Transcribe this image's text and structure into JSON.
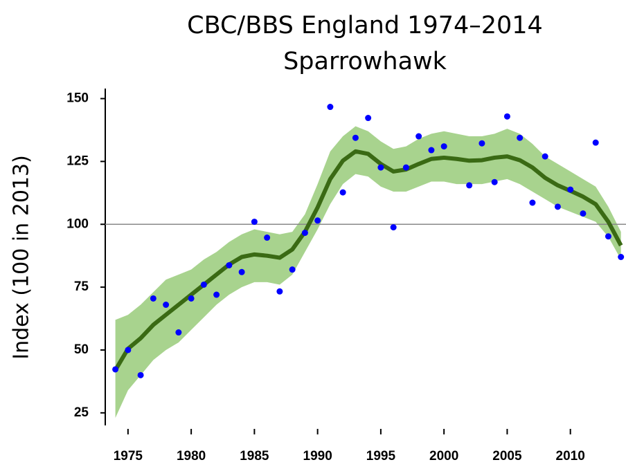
{
  "chart_data": {
    "type": "line",
    "title": "CBC/BBS England 1974–2014",
    "subtitle": "Sparrowhawk",
    "ylabel": "Index (100 in 2013)",
    "x": [
      1974,
      1975,
      1976,
      1977,
      1978,
      1979,
      1980,
      1981,
      1982,
      1983,
      1984,
      1985,
      1986,
      1987,
      1988,
      1989,
      1990,
      1991,
      1992,
      1993,
      1994,
      1995,
      1996,
      1997,
      1998,
      1999,
      2000,
      2001,
      2002,
      2003,
      2004,
      2005,
      2006,
      2007,
      2008,
      2009,
      2010,
      2011,
      2012,
      2013,
      2014
    ],
    "series": [
      {
        "kind": "band-upper",
        "color": "#a8d38e",
        "values": [
          62,
          64,
          68,
          73,
          78,
          80,
          82,
          86,
          89,
          93,
          96,
          98,
          97,
          96,
          97,
          104,
          116,
          129,
          135,
          139,
          137,
          133,
          130,
          131,
          134,
          136,
          137,
          136,
          135,
          135,
          136,
          138,
          136,
          132,
          127,
          124,
          121,
          118,
          115,
          107,
          97
        ]
      },
      {
        "kind": "band-lower",
        "color": "#a8d38e",
        "values": [
          23,
          34,
          40,
          46,
          50,
          53,
          58,
          63,
          68,
          72,
          75,
          77,
          77,
          76,
          80,
          89,
          98,
          108,
          116,
          120,
          119,
          115,
          113,
          113,
          115,
          117,
          117,
          116,
          116,
          116,
          117,
          118,
          116,
          113,
          110,
          107,
          105,
          103,
          101,
          95,
          86
        ]
      },
      {
        "kind": "trend",
        "color": "#3a6a14",
        "values": [
          42,
          50.5,
          54.7,
          60,
          64,
          68,
          72,
          76,
          80,
          84,
          87,
          88,
          87.5,
          86.7,
          90,
          97,
          106.7,
          118,
          125.3,
          129,
          128,
          124,
          121,
          121.8,
          124,
          126,
          126.5,
          126,
          125.3,
          125.5,
          126.5,
          127,
          125.5,
          122.6,
          118.5,
          115.5,
          113.3,
          111,
          108,
          101,
          91.6
        ]
      },
      {
        "kind": "points",
        "color": "#0000ff",
        "values": [
          42.3,
          50,
          40,
          70.5,
          68,
          57,
          70.5,
          76,
          72,
          83.7,
          81,
          101,
          94.7,
          73.3,
          82,
          96.6,
          101.5,
          146.7,
          112.7,
          134.4,
          142.3,
          122.6,
          98.8,
          122.6,
          135,
          129.5,
          131,
          null,
          115.5,
          132.2,
          116.8,
          142.9,
          134.4,
          108.6,
          127,
          107,
          113.8,
          104.3,
          132.5,
          95.2,
          87
        ]
      }
    ],
    "reference_line": 100,
    "xlim": [
      1973.2,
      2014.4
    ],
    "xticks": [
      1975,
      1980,
      1985,
      1990,
      1995,
      2000,
      2005,
      2010
    ],
    "ylim": [
      20,
      154
    ],
    "yticks": [
      25,
      50,
      75,
      100,
      125,
      150
    ]
  }
}
